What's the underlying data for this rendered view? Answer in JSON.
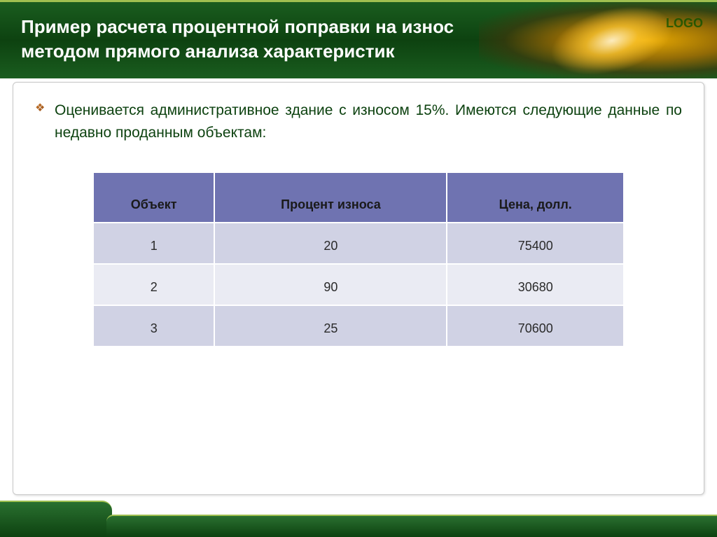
{
  "header": {
    "title": "Пример расчета процентной поправки на износ методом прямого анализа характеристик",
    "logo_text": "LOGO",
    "background_color": "#0d4210",
    "title_color": "#ffffff",
    "title_fontsize": 26
  },
  "content": {
    "bullet_text": "Оценивается административное здание с износом 15%. Имеются следующие данные по недавно проданным объектам:",
    "bullet_color": "#0d4210",
    "bullet_fontsize": 21,
    "bullet_icon_color": "#8b4513"
  },
  "table": {
    "header_bg": "#6f73b1",
    "header_text_color": "#1a1a1a",
    "row_odd_bg": "#d0d2e4",
    "row_even_bg": "#eaebf3",
    "cell_text_color": "#2a2a2a",
    "border_color": "#ffffff",
    "fontsize": 18,
    "columns": [
      "Объект",
      "Процент износа",
      "Цена, долл."
    ],
    "rows": [
      [
        "1",
        "20",
        "75400"
      ],
      [
        "2",
        "90",
        "30680"
      ],
      [
        "3",
        "25",
        "70600"
      ]
    ]
  },
  "footer": {
    "background_color": "#0d4210",
    "accent_color": "#a0c050"
  }
}
